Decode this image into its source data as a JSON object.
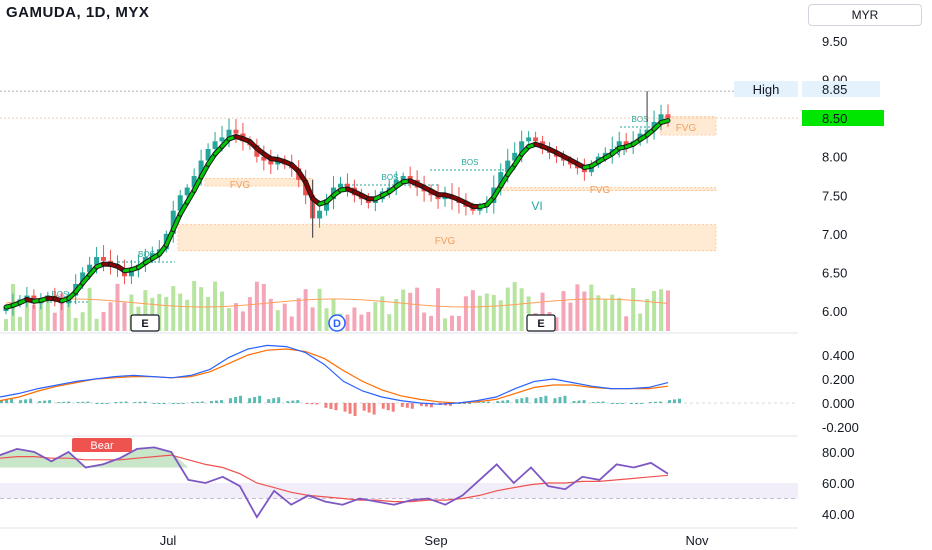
{
  "header": {
    "title": "GAMUDA, 1D, MYX",
    "currency": "MYR"
  },
  "price_badges": {
    "high_label": "High",
    "high_value": "8.85",
    "last_value": "8.50"
  },
  "colors": {
    "up": "#26a69a",
    "down": "#ef5350",
    "ema_green": "#00c805",
    "ema_dark": "#1b1b1b",
    "ema_red": "#8b0000",
    "fvg": "#ffd9b0",
    "macd_blue": "#2962ff",
    "macd_orange": "#ff6d00",
    "rsi": "#7e57c2",
    "vol_green": "#b7e5a0",
    "vol_red": "#f4a6b8",
    "last_badge": "#00e600"
  },
  "chart_data": [
    {
      "panel": "price",
      "type": "candlestick",
      "ylim": [
        5.8,
        10.0
      ],
      "yticks": [
        "9.50",
        "9.00",
        "8.00",
        "7.50",
        "7.00",
        "6.50",
        "6.00"
      ],
      "xticks": [
        "Jul",
        "Sep",
        "Nov"
      ],
      "close_path": [
        6.05,
        6.1,
        6.15,
        6.2,
        6.1,
        6.15,
        6.2,
        6.15,
        6.1,
        6.2,
        6.35,
        6.5,
        6.6,
        6.7,
        6.65,
        6.6,
        6.55,
        6.45,
        6.55,
        6.6,
        6.7,
        6.75,
        6.8,
        7.0,
        7.3,
        7.5,
        7.6,
        7.75,
        7.95,
        8.1,
        8.2,
        8.25,
        8.35,
        8.3,
        8.2,
        8.15,
        8.0,
        7.95,
        7.9,
        7.95,
        7.9,
        7.85,
        7.7,
        7.5,
        7.2,
        7.3,
        7.45,
        7.6,
        7.65,
        7.6,
        7.5,
        7.45,
        7.4,
        7.45,
        7.55,
        7.6,
        7.7,
        7.75,
        7.7,
        7.6,
        7.55,
        7.5,
        7.45,
        7.5,
        7.45,
        7.4,
        7.35,
        7.3,
        7.35,
        7.4,
        7.6,
        7.8,
        7.95,
        8.05,
        8.2,
        8.25,
        8.2,
        8.1,
        8.05,
        8.0,
        7.95,
        7.9,
        7.85,
        7.8,
        7.9,
        8.0,
        8.05,
        8.1,
        8.2,
        8.15,
        8.2,
        8.3,
        8.35,
        8.45,
        8.55,
        8.5
      ],
      "labels": [
        "BOS",
        "BOS",
        "BOS",
        "BOS",
        "BOS",
        "FVG",
        "FVG",
        "FVG",
        "FVG",
        "VI",
        "VI"
      ],
      "event_markers": [
        "E",
        "D",
        "E"
      ],
      "high": 8.85,
      "last": 8.5
    },
    {
      "panel": "macd",
      "type": "line",
      "ylim": [
        -0.25,
        0.5
      ],
      "yticks": [
        "0.400",
        "0.200",
        "0.000",
        "-0.200"
      ],
      "series_macd": [
        0.05,
        0.08,
        0.12,
        0.15,
        0.18,
        0.2,
        0.22,
        0.23,
        0.22,
        0.21,
        0.23,
        0.28,
        0.38,
        0.45,
        0.48,
        0.47,
        0.42,
        0.32,
        0.18,
        0.1,
        0.05,
        0.02,
        0.0,
        -0.01,
        0.0,
        0.02,
        0.05,
        0.12,
        0.18,
        0.2,
        0.17,
        0.14,
        0.12,
        0.12,
        0.13,
        0.17
      ],
      "series_signal": [
        0.02,
        0.05,
        0.1,
        0.14,
        0.17,
        0.2,
        0.21,
        0.22,
        0.22,
        0.21,
        0.22,
        0.26,
        0.33,
        0.4,
        0.44,
        0.45,
        0.43,
        0.37,
        0.27,
        0.18,
        0.11,
        0.06,
        0.03,
        0.01,
        0.0,
        0.01,
        0.03,
        0.08,
        0.13,
        0.15,
        0.15,
        0.13,
        0.12,
        0.12,
        0.12,
        0.14
      ]
    },
    {
      "panel": "rsi",
      "type": "line",
      "ylim": [
        35,
        90
      ],
      "yticks": [
        "80.00",
        "60.00",
        "40.00"
      ],
      "rsi": [
        78,
        82,
        80,
        74,
        80,
        70,
        72,
        76,
        82,
        83,
        80,
        62,
        60,
        64,
        58,
        38,
        55,
        46,
        52,
        48,
        46,
        50,
        48,
        46,
        49,
        50,
        46,
        52,
        62,
        72,
        60,
        70,
        58,
        56,
        64,
        62,
        72,
        70,
        73,
        66
      ],
      "rsi_ma": [
        76,
        77,
        77,
        76,
        76,
        75,
        75,
        75,
        76,
        77,
        78,
        75,
        72,
        70,
        66,
        60,
        57,
        54,
        52,
        51,
        50,
        49,
        49,
        48,
        48,
        49,
        49,
        50,
        52,
        55,
        57,
        59,
        60,
        60,
        61,
        61,
        62,
        63,
        64,
        65
      ],
      "band": [
        50,
        60
      ],
      "tag": "Bear"
    }
  ]
}
